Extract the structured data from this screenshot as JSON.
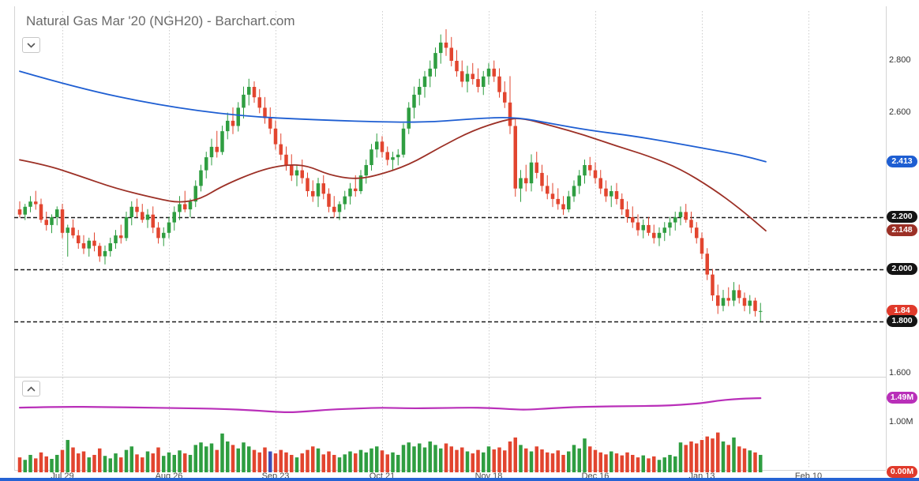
{
  "header": {
    "title": "Natural Gas Mar '20 (NGH20) - Barchart.com"
  },
  "axis": {
    "x_labels": [
      {
        "label": "Jul 29",
        "index": 8
      },
      {
        "label": "Aug 26",
        "index": 28
      },
      {
        "label": "Sep 23",
        "index": 48
      },
      {
        "label": "Oct 21",
        "index": 68
      },
      {
        "label": "Nov 18",
        "index": 88
      },
      {
        "label": "Dec 16",
        "index": 108
      },
      {
        "label": "Jan 13",
        "index": 128
      },
      {
        "label": "Feb 10",
        "index": 148
      }
    ],
    "price_labels": [
      {
        "value": "2.800",
        "price": 2.8
      },
      {
        "value": "2.600",
        "price": 2.6
      },
      {
        "value": "1.600",
        "price": 1.6
      }
    ],
    "price_badges": [
      {
        "value": "2.413",
        "price": 2.413,
        "color": "#1e5ed2",
        "name": "ma-long-price-badge"
      },
      {
        "value": "2.200",
        "price": 2.2,
        "color": "#141414",
        "name": "level-2200-badge"
      },
      {
        "value": "2.148",
        "price": 2.148,
        "color": "#9c3026",
        "name": "ma-short-price-badge"
      },
      {
        "value": "2.000",
        "price": 2.0,
        "color": "#141414",
        "name": "level-2000-badge"
      },
      {
        "value": "1.84",
        "price": 1.84,
        "color": "#e03a2b",
        "name": "last-price-badge"
      },
      {
        "value": "1.800",
        "price": 1.8,
        "color": "#141414",
        "name": "level-1800-badge"
      }
    ],
    "volume_labels": [
      {
        "value": "1.00M",
        "m": 1.0
      }
    ],
    "volume_badges": [
      {
        "value": "1.49M",
        "m": 1.49,
        "color": "#b92fb9",
        "name": "open-interest-badge"
      },
      {
        "value": "0.00M",
        "m": 0.0,
        "color": "#e03a2b",
        "name": "volume-badge"
      }
    ]
  },
  "chart_data": {
    "type": "candlestick",
    "title": "Natural Gas Mar '20 (NGH20) daily price with volume and open interest",
    "x_tick_labels": [
      "Jul 29",
      "Aug 26",
      "Sep 23",
      "Oct 21",
      "Nov 18",
      "Dec 16",
      "Jan 13",
      "Feb 10"
    ],
    "x_tick_indices": [
      8,
      28,
      48,
      68,
      88,
      108,
      128,
      148
    ],
    "price_axis": {
      "visible_labels": [
        2.8,
        2.6,
        1.6
      ],
      "dashed_levels": [
        2.2,
        2.0,
        1.8
      ],
      "range": [
        1.6,
        2.95
      ]
    },
    "volume_axis": {
      "visible_labels": [
        "1.00M"
      ],
      "range_m": [
        0,
        1.87
      ]
    },
    "last_price": 1.84,
    "colors": {
      "up": "#2f9e41",
      "down": "#e2452f",
      "grid": "#cdcdcd",
      "dashed_line": "#1a1a1a",
      "border": "#d4d4d4"
    },
    "series": {
      "ma_long": {
        "color": "#1e5ed2",
        "last_value": 2.413,
        "points": [
          [
            0,
            2.76
          ],
          [
            11,
            2.695
          ],
          [
            26,
            2.63
          ],
          [
            41,
            2.588
          ],
          [
            56,
            2.573
          ],
          [
            70,
            2.564
          ],
          [
            78,
            2.566
          ],
          [
            85,
            2.578
          ],
          [
            93,
            2.585
          ],
          [
            100,
            2.558
          ],
          [
            107,
            2.533
          ],
          [
            115,
            2.512
          ],
          [
            122,
            2.488
          ],
          [
            130,
            2.458
          ],
          [
            135,
            2.44
          ],
          [
            140,
            2.413
          ]
        ]
      },
      "ma_short": {
        "color": "#9c3026",
        "last_value": 2.148,
        "points": [
          [
            0,
            2.42
          ],
          [
            5,
            2.4
          ],
          [
            11,
            2.36
          ],
          [
            18,
            2.31
          ],
          [
            26,
            2.27
          ],
          [
            30,
            2.255
          ],
          [
            34,
            2.27
          ],
          [
            38,
            2.32
          ],
          [
            45,
            2.38
          ],
          [
            50,
            2.402
          ],
          [
            54,
            2.398
          ],
          [
            58,
            2.362
          ],
          [
            63,
            2.345
          ],
          [
            67,
            2.36
          ],
          [
            73,
            2.4
          ],
          [
            79,
            2.47
          ],
          [
            85,
            2.533
          ],
          [
            91,
            2.573
          ],
          [
            94,
            2.582
          ],
          [
            100,
            2.55
          ],
          [
            106,
            2.515
          ],
          [
            112,
            2.473
          ],
          [
            118,
            2.435
          ],
          [
            124,
            2.385
          ],
          [
            130,
            2.31
          ],
          [
            135,
            2.235
          ],
          [
            140,
            2.148
          ]
        ]
      },
      "open_interest_m": {
        "color": "#b92fb9",
        "last_value_m": 1.49,
        "points": [
          [
            0,
            1.3
          ],
          [
            8,
            1.32
          ],
          [
            16,
            1.31
          ],
          [
            24,
            1.3
          ],
          [
            30,
            1.29
          ],
          [
            38,
            1.275
          ],
          [
            44,
            1.245
          ],
          [
            50,
            1.2
          ],
          [
            54,
            1.225
          ],
          [
            58,
            1.26
          ],
          [
            64,
            1.285
          ],
          [
            68,
            1.3
          ],
          [
            73,
            1.285
          ],
          [
            78,
            1.29
          ],
          [
            84,
            1.3
          ],
          [
            88,
            1.295
          ],
          [
            92,
            1.27
          ],
          [
            95,
            1.255
          ],
          [
            100,
            1.29
          ],
          [
            104,
            1.31
          ],
          [
            108,
            1.32
          ],
          [
            114,
            1.33
          ],
          [
            120,
            1.335
          ],
          [
            124,
            1.355
          ],
          [
            128,
            1.39
          ],
          [
            131,
            1.44
          ],
          [
            134,
            1.47
          ],
          [
            137,
            1.487
          ],
          [
            139,
            1.49
          ]
        ]
      }
    },
    "candles": [
      [
        2.23,
        2.26,
        2.2,
        2.21
      ],
      [
        2.21,
        2.25,
        2.19,
        2.24
      ],
      [
        2.24,
        2.28,
        2.22,
        2.26
      ],
      [
        2.26,
        2.3,
        2.23,
        2.25
      ],
      [
        2.25,
        2.27,
        2.18,
        2.19
      ],
      [
        2.19,
        2.22,
        2.15,
        2.17
      ],
      [
        2.17,
        2.21,
        2.14,
        2.2
      ],
      [
        2.2,
        2.24,
        2.17,
        2.23
      ],
      [
        2.23,
        2.25,
        2.12,
        2.14
      ],
      [
        2.14,
        2.17,
        2.05,
        2.16
      ],
      [
        2.16,
        2.19,
        2.12,
        2.13
      ],
      [
        2.13,
        2.15,
        2.08,
        2.1
      ],
      [
        2.1,
        2.13,
        2.06,
        2.08
      ],
      [
        2.08,
        2.12,
        2.05,
        2.11
      ],
      [
        2.11,
        2.14,
        2.07,
        2.09
      ],
      [
        2.09,
        2.1,
        2.03,
        2.05
      ],
      [
        2.05,
        2.09,
        2.02,
        2.07
      ],
      [
        2.07,
        2.12,
        2.05,
        2.1
      ],
      [
        2.1,
        2.15,
        2.08,
        2.13
      ],
      [
        2.13,
        2.17,
        2.1,
        2.12
      ],
      [
        2.12,
        2.22,
        2.11,
        2.2
      ],
      [
        2.2,
        2.26,
        2.17,
        2.24
      ],
      [
        2.24,
        2.27,
        2.2,
        2.22
      ],
      [
        2.22,
        2.25,
        2.18,
        2.19
      ],
      [
        2.19,
        2.23,
        2.16,
        2.21
      ],
      [
        2.21,
        2.24,
        2.14,
        2.16
      ],
      [
        2.16,
        2.18,
        2.1,
        2.12
      ],
      [
        2.12,
        2.16,
        2.09,
        2.14
      ],
      [
        2.14,
        2.2,
        2.12,
        2.18
      ],
      [
        2.18,
        2.24,
        2.15,
        2.22
      ],
      [
        2.22,
        2.28,
        2.19,
        2.25
      ],
      [
        2.25,
        2.3,
        2.22,
        2.23
      ],
      [
        2.23,
        2.27,
        2.2,
        2.26
      ],
      [
        2.26,
        2.34,
        2.24,
        2.32
      ],
      [
        2.32,
        2.4,
        2.3,
        2.38
      ],
      [
        2.38,
        2.45,
        2.35,
        2.43
      ],
      [
        2.43,
        2.5,
        2.4,
        2.47
      ],
      [
        2.47,
        2.53,
        2.43,
        2.45
      ],
      [
        2.45,
        2.55,
        2.44,
        2.53
      ],
      [
        2.53,
        2.6,
        2.5,
        2.57
      ],
      [
        2.57,
        2.62,
        2.52,
        2.55
      ],
      [
        2.55,
        2.64,
        2.53,
        2.62
      ],
      [
        2.62,
        2.7,
        2.58,
        2.67
      ],
      [
        2.67,
        2.73,
        2.63,
        2.7
      ],
      [
        2.7,
        2.72,
        2.64,
        2.66
      ],
      [
        2.66,
        2.69,
        2.6,
        2.62
      ],
      [
        2.62,
        2.66,
        2.56,
        2.58
      ],
      [
        2.58,
        2.62,
        2.52,
        2.54
      ],
      [
        2.54,
        2.57,
        2.46,
        2.48
      ],
      [
        2.48,
        2.52,
        2.42,
        2.44
      ],
      [
        2.44,
        2.47,
        2.38,
        2.4
      ],
      [
        2.4,
        2.44,
        2.34,
        2.36
      ],
      [
        2.36,
        2.4,
        2.32,
        2.38
      ],
      [
        2.38,
        2.42,
        2.33,
        2.35
      ],
      [
        2.35,
        2.37,
        2.28,
        2.3
      ],
      [
        2.3,
        2.34,
        2.26,
        2.28
      ],
      [
        2.28,
        2.35,
        2.24,
        2.33
      ],
      [
        2.33,
        2.36,
        2.27,
        2.29
      ],
      [
        2.29,
        2.31,
        2.22,
        2.24
      ],
      [
        2.24,
        2.28,
        2.2,
        2.22
      ],
      [
        2.22,
        2.26,
        2.19,
        2.25
      ],
      [
        2.25,
        2.3,
        2.23,
        2.28
      ],
      [
        2.28,
        2.33,
        2.25,
        2.31
      ],
      [
        2.31,
        2.36,
        2.28,
        2.3
      ],
      [
        2.3,
        2.38,
        2.29,
        2.36
      ],
      [
        2.36,
        2.42,
        2.33,
        2.4
      ],
      [
        2.4,
        2.48,
        2.38,
        2.46
      ],
      [
        2.46,
        2.52,
        2.43,
        2.49
      ],
      [
        2.49,
        2.51,
        2.43,
        2.45
      ],
      [
        2.45,
        2.47,
        2.4,
        2.42
      ],
      [
        2.42,
        2.45,
        2.38,
        2.43
      ],
      [
        2.43,
        2.46,
        2.4,
        2.44
      ],
      [
        2.44,
        2.56,
        2.43,
        2.54
      ],
      [
        2.54,
        2.64,
        2.52,
        2.62
      ],
      [
        2.62,
        2.7,
        2.58,
        2.67
      ],
      [
        2.67,
        2.73,
        2.63,
        2.7
      ],
      [
        2.7,
        2.76,
        2.66,
        2.74
      ],
      [
        2.74,
        2.8,
        2.7,
        2.77
      ],
      [
        2.77,
        2.85,
        2.74,
        2.83
      ],
      [
        2.83,
        2.9,
        2.79,
        2.87
      ],
      [
        2.87,
        2.92,
        2.82,
        2.85
      ],
      [
        2.85,
        2.89,
        2.78,
        2.8
      ],
      [
        2.8,
        2.84,
        2.74,
        2.76
      ],
      [
        2.76,
        2.8,
        2.7,
        2.72
      ],
      [
        2.72,
        2.78,
        2.68,
        2.75
      ],
      [
        2.75,
        2.79,
        2.71,
        2.73
      ],
      [
        2.73,
        2.77,
        2.68,
        2.7
      ],
      [
        2.7,
        2.76,
        2.67,
        2.74
      ],
      [
        2.74,
        2.79,
        2.71,
        2.77
      ],
      [
        2.77,
        2.8,
        2.72,
        2.74
      ],
      [
        2.74,
        2.77,
        2.66,
        2.68
      ],
      [
        2.68,
        2.72,
        2.62,
        2.64
      ],
      [
        2.64,
        2.74,
        2.52,
        2.55
      ],
      [
        2.55,
        2.58,
        2.28,
        2.31
      ],
      [
        2.31,
        2.38,
        2.26,
        2.35
      ],
      [
        2.35,
        2.4,
        2.3,
        2.33
      ],
      [
        2.33,
        2.44,
        2.3,
        2.41
      ],
      [
        2.41,
        2.45,
        2.35,
        2.37
      ],
      [
        2.37,
        2.4,
        2.3,
        2.32
      ],
      [
        2.32,
        2.36,
        2.27,
        2.29
      ],
      [
        2.29,
        2.33,
        2.24,
        2.27
      ],
      [
        2.27,
        2.31,
        2.23,
        2.25
      ],
      [
        2.25,
        2.28,
        2.21,
        2.23
      ],
      [
        2.23,
        2.3,
        2.22,
        2.28
      ],
      [
        2.28,
        2.34,
        2.26,
        2.32
      ],
      [
        2.32,
        2.38,
        2.29,
        2.36
      ],
      [
        2.36,
        2.42,
        2.33,
        2.4
      ],
      [
        2.4,
        2.43,
        2.36,
        2.38
      ],
      [
        2.38,
        2.41,
        2.33,
        2.35
      ],
      [
        2.35,
        2.38,
        2.29,
        2.31
      ],
      [
        2.31,
        2.34,
        2.26,
        2.28
      ],
      [
        2.28,
        2.32,
        2.24,
        2.3
      ],
      [
        2.3,
        2.33,
        2.25,
        2.27
      ],
      [
        2.27,
        2.29,
        2.21,
        2.23
      ],
      [
        2.23,
        2.26,
        2.18,
        2.2
      ],
      [
        2.2,
        2.24,
        2.16,
        2.18
      ],
      [
        2.18,
        2.21,
        2.13,
        2.15
      ],
      [
        2.15,
        2.19,
        2.12,
        2.17
      ],
      [
        2.17,
        2.2,
        2.13,
        2.14
      ],
      [
        2.14,
        2.17,
        2.1,
        2.12
      ],
      [
        2.12,
        2.16,
        2.09,
        2.14
      ],
      [
        2.14,
        2.18,
        2.11,
        2.16
      ],
      [
        2.16,
        2.2,
        2.13,
        2.18
      ],
      [
        2.18,
        2.22,
        2.15,
        2.2
      ],
      [
        2.2,
        2.24,
        2.17,
        2.22
      ],
      [
        2.22,
        2.25,
        2.18,
        2.19
      ],
      [
        2.19,
        2.22,
        2.14,
        2.16
      ],
      [
        2.16,
        2.18,
        2.1,
        2.12
      ],
      [
        2.12,
        2.14,
        2.04,
        2.06
      ],
      [
        2.06,
        2.08,
        1.96,
        1.98
      ],
      [
        1.98,
        2.0,
        1.88,
        1.9
      ],
      [
        1.9,
        1.94,
        1.83,
        1.86
      ],
      [
        1.86,
        1.92,
        1.84,
        1.89
      ],
      [
        1.89,
        1.93,
        1.86,
        1.88
      ],
      [
        1.88,
        1.95,
        1.86,
        1.92
      ],
      [
        1.92,
        1.94,
        1.87,
        1.89
      ],
      [
        1.89,
        1.91,
        1.84,
        1.86
      ],
      [
        1.86,
        1.9,
        1.83,
        1.88
      ],
      [
        1.88,
        1.89,
        1.82,
        1.84
      ],
      [
        1.84,
        1.87,
        1.8,
        1.84
      ]
    ],
    "volume_m": [
      0.3,
      0.25,
      0.35,
      0.28,
      0.4,
      0.32,
      0.27,
      0.35,
      0.45,
      0.65,
      0.5,
      0.38,
      0.42,
      0.3,
      0.35,
      0.48,
      0.33,
      0.28,
      0.38,
      0.3,
      0.45,
      0.52,
      0.36,
      0.3,
      0.42,
      0.38,
      0.5,
      0.33,
      0.4,
      0.35,
      0.44,
      0.38,
      0.35,
      0.55,
      0.6,
      0.52,
      0.58,
      0.45,
      0.78,
      0.62,
      0.55,
      0.48,
      0.6,
      0.52,
      0.45,
      0.4,
      0.5,
      0.42,
      0.38,
      0.45,
      0.4,
      0.35,
      0.3,
      0.38,
      0.45,
      0.52,
      0.48,
      0.36,
      0.42,
      0.35,
      0.3,
      0.36,
      0.42,
      0.38,
      0.45,
      0.4,
      0.48,
      0.52,
      0.44,
      0.36,
      0.4,
      0.35,
      0.55,
      0.6,
      0.52,
      0.58,
      0.5,
      0.62,
      0.55,
      0.48,
      0.58,
      0.52,
      0.45,
      0.5,
      0.42,
      0.38,
      0.45,
      0.4,
      0.52,
      0.46,
      0.5,
      0.44,
      0.62,
      0.7,
      0.55,
      0.48,
      0.42,
      0.52,
      0.46,
      0.4,
      0.38,
      0.44,
      0.35,
      0.42,
      0.55,
      0.48,
      0.68,
      0.52,
      0.45,
      0.4,
      0.36,
      0.42,
      0.38,
      0.34,
      0.4,
      0.35,
      0.3,
      0.34,
      0.28,
      0.32,
      0.25,
      0.3,
      0.35,
      0.32,
      0.6,
      0.55,
      0.62,
      0.58,
      0.65,
      0.72,
      0.68,
      0.8,
      0.62,
      0.55,
      0.7,
      0.52,
      0.48,
      0.44,
      0.4,
      0.35
    ],
    "volume_highlight": {
      "index": 47,
      "color": "#3d4db7"
    }
  }
}
